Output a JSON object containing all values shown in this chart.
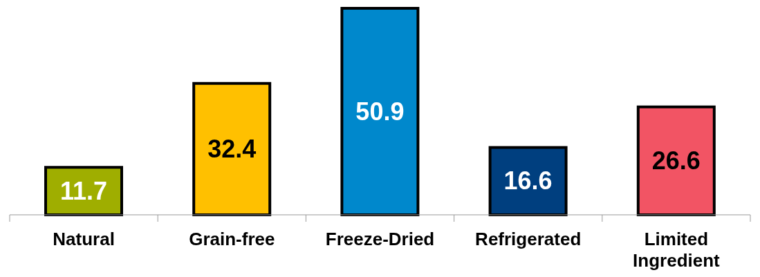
{
  "chart_data": {
    "type": "bar",
    "categories": [
      "Natural",
      "Grain-free",
      "Freeze-Dried",
      "Refrigerated",
      "Limited Ingredient"
    ],
    "values": [
      11.7,
      32.4,
      50.9,
      16.6,
      26.6
    ],
    "colors": [
      "#9fae00",
      "#ffc000",
      "#0088cc",
      "#003f7f",
      "#f25464"
    ],
    "data_labels": true
  }
}
